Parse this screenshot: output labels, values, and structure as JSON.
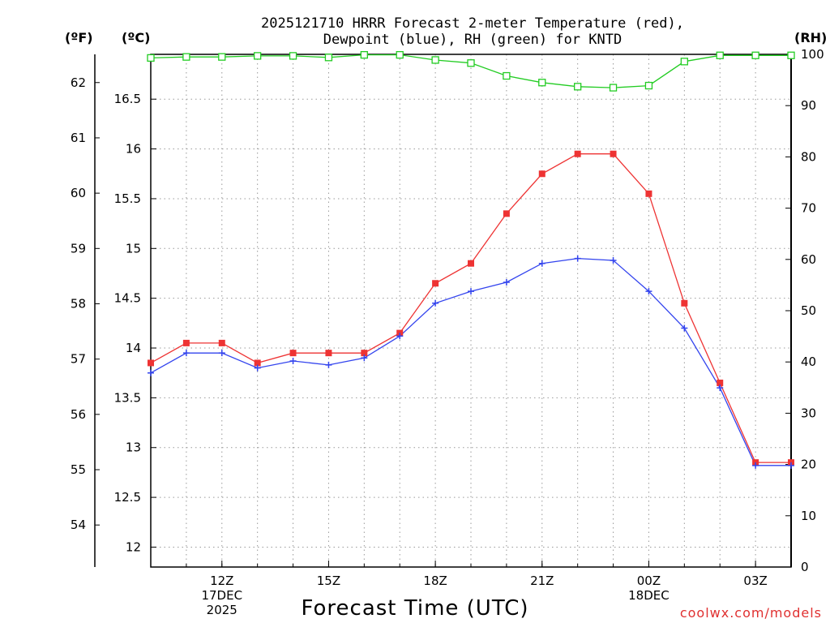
{
  "chart_data": {
    "type": "line",
    "title": "2025121710 HRRR Forecast 2-meter Temperature (red),",
    "subtitle": "Dewpoint (blue), RH (green) for KNTD",
    "xlabel": "Forecast Time (UTC)",
    "units": {
      "fahrenheit": "(ºF)",
      "celsius": "(ºC)",
      "rh": "(RH)"
    },
    "watermark": "coolwx.com/models",
    "x_hours": [
      10,
      11,
      12,
      13,
      14,
      15,
      16,
      17,
      18,
      19,
      20,
      21,
      22,
      23,
      24,
      25,
      26,
      27,
      28
    ],
    "xlim": [
      10,
      28
    ],
    "x_ticks": [
      {
        "hour": 12,
        "lines": [
          "12Z",
          "17DEC",
          "2025"
        ]
      },
      {
        "hour": 15,
        "lines": [
          "15Z"
        ]
      },
      {
        "hour": 18,
        "lines": [
          "18Z"
        ]
      },
      {
        "hour": 21,
        "lines": [
          "21Z"
        ]
      },
      {
        "hour": 24,
        "lines": [
          "00Z",
          "18DEC"
        ]
      },
      {
        "hour": 27,
        "lines": [
          "03Z"
        ]
      }
    ],
    "y_celsius": {
      "lim": [
        11.8,
        16.95
      ],
      "ticks": [
        "12",
        "12.5",
        "13",
        "13.5",
        "14",
        "14.5",
        "15",
        "15.5",
        "16",
        "16.5"
      ]
    },
    "y_fahrenheit": {
      "ticks": [
        "54",
        "55",
        "56",
        "57",
        "58",
        "59",
        "60",
        "61",
        "62"
      ]
    },
    "y_rh": {
      "lim": [
        0,
        100
      ],
      "ticks": [
        "0",
        "10",
        "20",
        "30",
        "40",
        "50",
        "60",
        "70",
        "80",
        "90",
        "100"
      ]
    },
    "series": [
      {
        "name": "Temperature",
        "axis": "celsius",
        "color": "#ee3333",
        "marker": "filled-square",
        "values": [
          13.85,
          14.05,
          14.05,
          13.85,
          13.95,
          13.95,
          13.95,
          14.15,
          14.65,
          14.85,
          15.35,
          15.75,
          15.95,
          15.95,
          15.55,
          14.45,
          13.65,
          12.85,
          12.85
        ]
      },
      {
        "name": "Dewpoint",
        "axis": "celsius",
        "color": "#3344ee",
        "marker": "plus",
        "values": [
          13.75,
          13.95,
          13.95,
          13.8,
          13.87,
          13.83,
          13.9,
          14.12,
          14.45,
          14.57,
          14.66,
          14.85,
          14.9,
          14.88,
          14.57,
          14.2,
          13.6,
          12.82,
          12.82
        ]
      },
      {
        "name": "RH",
        "axis": "rh",
        "color": "#22cc22",
        "marker": "open-square",
        "values": [
          99.3,
          99.5,
          99.5,
          99.7,
          99.7,
          99.4,
          99.9,
          99.9,
          98.9,
          98.3,
          95.8,
          94.5,
          93.7,
          93.5,
          93.9,
          98.6,
          99.8,
          99.8,
          99.8
        ]
      }
    ]
  }
}
